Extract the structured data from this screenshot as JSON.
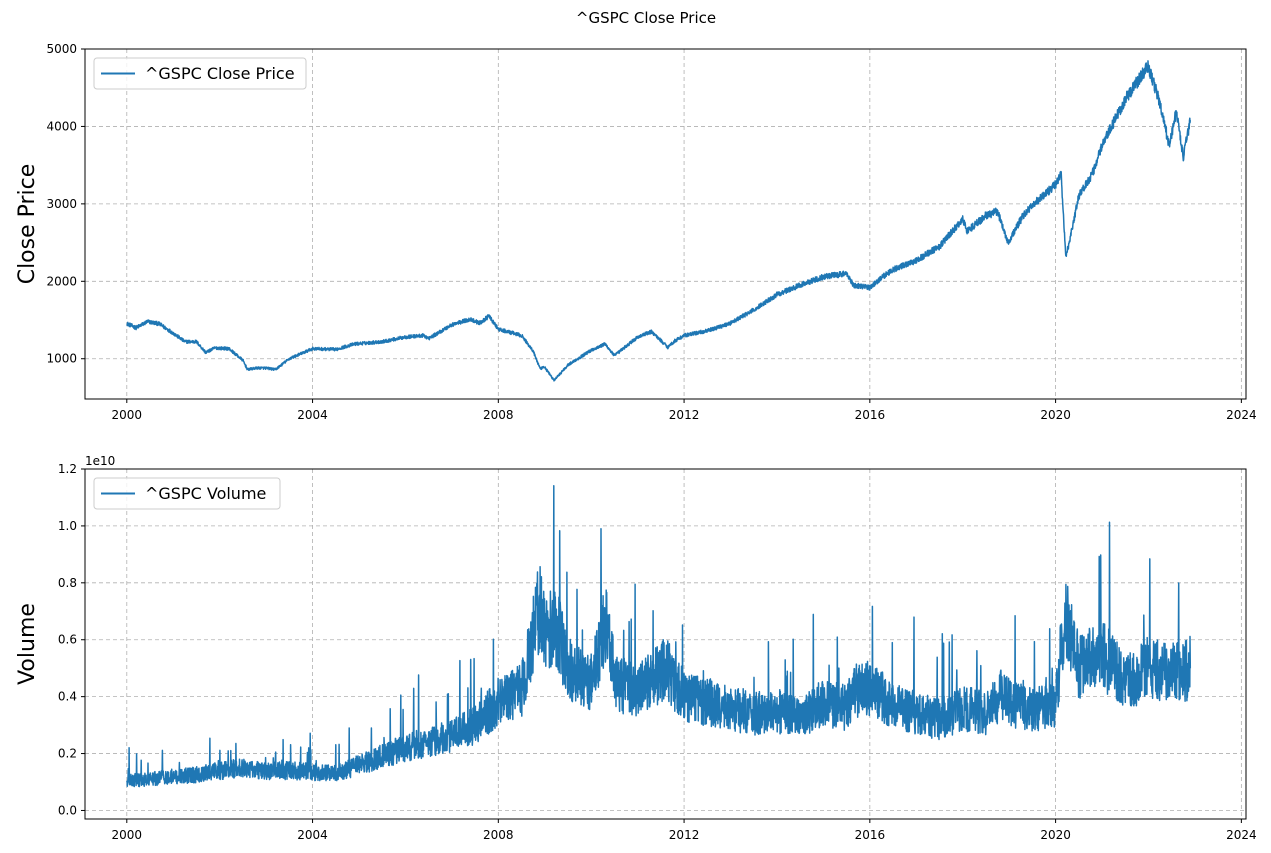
{
  "figure_title": "^GSPC Close Price",
  "colors": {
    "line": "#1f77b4",
    "grid": "#b0b0b0",
    "axis": "#000000"
  },
  "chart_data": [
    {
      "type": "line",
      "ylabel": "Close Price",
      "legend": "top-left",
      "grid": true,
      "xlim": [
        1999.1,
        2024.1
      ],
      "ylim": [
        480,
        5000
      ],
      "x_ticks": [
        2000,
        2004,
        2008,
        2012,
        2016,
        2020,
        2024
      ],
      "y_ticks": [
        1000,
        2000,
        3000,
        4000,
        5000
      ],
      "series": [
        {
          "name": "^GSPC Close Price",
          "x": [
            2000.0,
            2000.2,
            2000.45,
            2000.7,
            2001.0,
            2001.25,
            2001.5,
            2001.7,
            2001.9,
            2002.2,
            2002.5,
            2002.6,
            2002.8,
            2003.0,
            2003.2,
            2003.5,
            2004.0,
            2004.5,
            2004.9,
            2005.5,
            2006.0,
            2006.4,
            2006.5,
            2007.0,
            2007.4,
            2007.6,
            2007.8,
            2008.0,
            2008.5,
            2008.75,
            2008.9,
            2009.0,
            2009.2,
            2009.5,
            2010.0,
            2010.3,
            2010.5,
            2011.0,
            2011.3,
            2011.65,
            2011.8,
            2012.0,
            2012.5,
            2013.0,
            2013.5,
            2014.0,
            2014.5,
            2015.0,
            2015.5,
            2015.65,
            2016.0,
            2016.3,
            2016.5,
            2017.0,
            2017.5,
            2018.0,
            2018.1,
            2018.5,
            2018.75,
            2018.98,
            2019.3,
            2019.5,
            2020.0,
            2020.12,
            2020.22,
            2020.5,
            2020.8,
            2021.0,
            2021.5,
            2021.99,
            2022.2,
            2022.45,
            2022.6,
            2022.75,
            2022.9
          ],
          "values": [
            1455,
            1400,
            1480,
            1450,
            1330,
            1220,
            1220,
            1080,
            1140,
            1130,
            980,
            860,
            880,
            880,
            860,
            1000,
            1130,
            1120,
            1190,
            1220,
            1280,
            1300,
            1260,
            1440,
            1510,
            1460,
            1550,
            1380,
            1300,
            1100,
            870,
            890,
            720,
            920,
            1110,
            1190,
            1040,
            1280,
            1350,
            1150,
            1230,
            1300,
            1360,
            1460,
            1630,
            1830,
            1950,
            2060,
            2100,
            1950,
            1920,
            2070,
            2150,
            2270,
            2450,
            2800,
            2650,
            2850,
            2900,
            2500,
            2850,
            2980,
            3250,
            3380,
            2300,
            3100,
            3400,
            3750,
            4350,
            4780,
            4400,
            3750,
            4200,
            3600,
            4080
          ]
        }
      ]
    },
    {
      "type": "line",
      "ylabel": "Volume",
      "legend": "top-left",
      "grid": true,
      "offset_label": "1e10",
      "xlim": [
        1999.1,
        2024.1
      ],
      "ylim": [
        -0.03,
        1.2
      ],
      "x_ticks": [
        2000,
        2004,
        2008,
        2012,
        2016,
        2020,
        2024
      ],
      "y_ticks": [
        0.0,
        0.2,
        0.4,
        0.6,
        0.8,
        1.0,
        1.2
      ],
      "series": [
        {
          "name": "^GSPC Volume",
          "x": [
            2000.0,
            2000.5,
            2001.0,
            2001.5,
            2002.0,
            2002.5,
            2003.0,
            2003.5,
            2004.0,
            2004.5,
            2005.0,
            2005.5,
            2006.0,
            2006.5,
            2007.0,
            2007.5,
            2008.0,
            2008.5,
            2008.75,
            2008.9,
            2009.0,
            2009.25,
            2009.5,
            2010.0,
            2010.35,
            2010.5,
            2011.0,
            2011.6,
            2011.8,
            2012.0,
            2012.5,
            2013.0,
            2013.5,
            2014.0,
            2014.5,
            2015.0,
            2015.5,
            2015.65,
            2016.0,
            2016.5,
            2017.0,
            2017.5,
            2018.0,
            2018.5,
            2018.9,
            2019.0,
            2019.5,
            2020.0,
            2020.2,
            2020.5,
            2021.0,
            2021.5,
            2022.0,
            2022.5,
            2022.9
          ],
          "values": [
            0.105,
            0.11,
            0.12,
            0.125,
            0.14,
            0.15,
            0.14,
            0.14,
            0.135,
            0.13,
            0.16,
            0.19,
            0.22,
            0.24,
            0.26,
            0.3,
            0.38,
            0.42,
            0.62,
            0.7,
            0.62,
            0.65,
            0.5,
            0.45,
            0.68,
            0.45,
            0.42,
            0.5,
            0.45,
            0.4,
            0.38,
            0.36,
            0.34,
            0.35,
            0.32,
            0.38,
            0.36,
            0.42,
            0.43,
            0.37,
            0.34,
            0.32,
            0.36,
            0.34,
            0.42,
            0.38,
            0.35,
            0.37,
            0.7,
            0.5,
            0.55,
            0.45,
            0.5,
            0.48,
            0.5
          ]
        }
      ]
    }
  ]
}
